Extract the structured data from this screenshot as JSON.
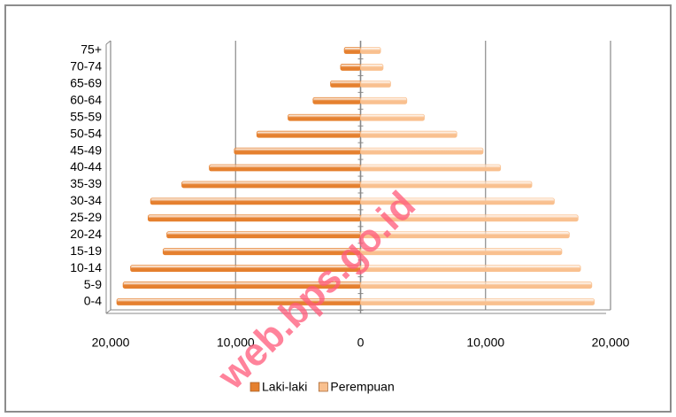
{
  "chart_data": {
    "type": "pyramid",
    "categories": [
      "0-4",
      "5-9",
      "10-14",
      "15-19",
      "20-24",
      "25-29",
      "30-34",
      "35-39",
      "40-44",
      "45-49",
      "50-54",
      "55-59",
      "60-64",
      "65-69",
      "70-74",
      "75+"
    ],
    "series": [
      {
        "name": "Laki-laki",
        "color": "#e5802f",
        "values": [
          -19500,
          -19000,
          -18400,
          -15800,
          -15500,
          -17000,
          -16800,
          -14300,
          -12100,
          -10100,
          -8300,
          -5800,
          -3800,
          -2400,
          -1600,
          -1300
        ]
      },
      {
        "name": "Perempuan",
        "color": "#f9c08f",
        "values": [
          18700,
          18500,
          17600,
          16100,
          16700,
          17400,
          15500,
          13700,
          11200,
          9800,
          7700,
          5100,
          3700,
          2400,
          1800,
          1600
        ]
      }
    ],
    "xlim": [
      -20000,
      20000
    ],
    "xticks": [
      {
        "value": -20000,
        "label": "20,000"
      },
      {
        "value": -10000,
        "label": "10,000"
      },
      0,
      {
        "value": 10000,
        "label": "10,000"
      },
      {
        "value": 20000,
        "label": "20,000"
      }
    ],
    "grid": true,
    "legend": "bottom",
    "watermark": "web.bps.go.id"
  }
}
